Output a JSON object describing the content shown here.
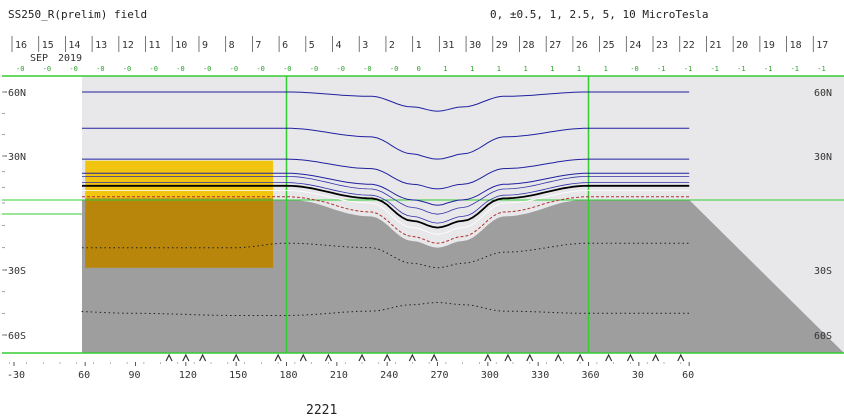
{
  "chart_data": {
    "type": "line",
    "title": "SS250_R(prelim) field",
    "contour_legend": "0, ±0.5, 1, 2.5, 5, 10 MicroTesla",
    "date_month_label": "SEP",
    "date_year_label": "2019",
    "footer_number": "2221",
    "day_ticks": [
      "16",
      "15",
      "14",
      "13",
      "12",
      "11",
      "10",
      "9",
      "8",
      "7",
      "6",
      "5",
      "4",
      "3",
      "2",
      "1",
      "31",
      "30",
      "29",
      "28",
      "27",
      "26",
      "25",
      "24",
      "23",
      "22",
      "21",
      "20",
      "19",
      "18",
      "17"
    ],
    "index_values": [
      "-0",
      "-0",
      "-0",
      "-0",
      "-0",
      "-0",
      "-0",
      "-0",
      "-0",
      "-0",
      "-0",
      "-0",
      "-0",
      "-0",
      "-0",
      "0",
      "1",
      "1",
      "1",
      "1",
      "1",
      "1",
      "1",
      "-0",
      "-1",
      "-1",
      "-1",
      "-1",
      "-1",
      "-1",
      "-1"
    ],
    "x_ticks": [
      "-30",
      "60",
      "90",
      "120",
      "150",
      "180",
      "210",
      "240",
      "270",
      "300",
      "330",
      "360",
      "30",
      "60"
    ],
    "y_ticks_left": [
      "60N",
      "30N",
      "30S",
      "60S"
    ],
    "y_ticks_right": [
      "60N",
      "30N",
      "30S",
      "60S"
    ],
    "ylim": [
      -70,
      70
    ],
    "xlabel": "",
    "ylabel": "",
    "grid": true,
    "colors": {
      "day_region": "#e8e8ea",
      "night_region": "#9e9e9e",
      "highlight_north": "#f1c40f",
      "highlight_south": "#b8860b",
      "contours": "#2020a0",
      "grid": "#33cc33",
      "zero_line": "#000000"
    },
    "highlight_box": {
      "lon_start": 60,
      "lon_end": 172,
      "lat_top": 27,
      "lat_bottom": -29
    },
    "series": [
      {
        "x": [
          45,
          90,
          150,
          180,
          230,
          255,
          270,
          285,
          310,
          360,
          420
        ],
        "values": [
          60,
          60,
          60,
          60,
          58,
          53,
          51,
          53,
          58,
          60,
          60
        ]
      },
      {
        "x": [
          45,
          90,
          150,
          180,
          230,
          255,
          270,
          285,
          310,
          360,
          420
        ],
        "values": [
          43,
          43,
          43,
          43,
          39,
          31,
          28,
          31,
          39,
          43,
          43
        ]
      },
      {
        "x": [
          45,
          90,
          150,
          180,
          230,
          255,
          270,
          285,
          310,
          360,
          420
        ],
        "values": [
          28,
          28,
          28,
          28,
          22,
          12,
          9,
          12,
          22,
          28,
          28
        ]
      },
      {
        "x": [
          45,
          90,
          150,
          180,
          230,
          255,
          270,
          285,
          310,
          360,
          420
        ],
        "values": [
          19,
          19,
          19,
          19,
          12,
          2,
          -1,
          2,
          12,
          19,
          19
        ]
      },
      {
        "x": [
          45,
          90,
          150,
          180,
          230,
          255,
          270,
          285,
          310,
          360,
          420
        ],
        "values": [
          11,
          11,
          11,
          11,
          3,
          -8,
          -11,
          -8,
          3,
          11,
          11
        ]
      },
      {
        "x": [
          45,
          90,
          150,
          180,
          230,
          255,
          270,
          285,
          310,
          360,
          420
        ],
        "values": [
          4,
          4,
          4,
          4,
          -4,
          -15,
          -18,
          -15,
          -4,
          4,
          4
        ]
      },
      {
        "x": [
          45,
          90,
          150,
          180,
          230,
          255,
          270,
          285,
          310,
          360,
          420
        ],
        "values": [
          -20,
          -20,
          -20,
          -18,
          -20,
          -27,
          -29,
          -27,
          -22,
          -18,
          -18
        ]
      },
      {
        "x": [
          45,
          90,
          150,
          180,
          230,
          255,
          270,
          285,
          310,
          360,
          420
        ],
        "values": [
          -49,
          -50,
          -51,
          -51,
          -49,
          -46,
          -45,
          -46,
          -49,
          -50,
          -50
        ]
      }
    ]
  }
}
